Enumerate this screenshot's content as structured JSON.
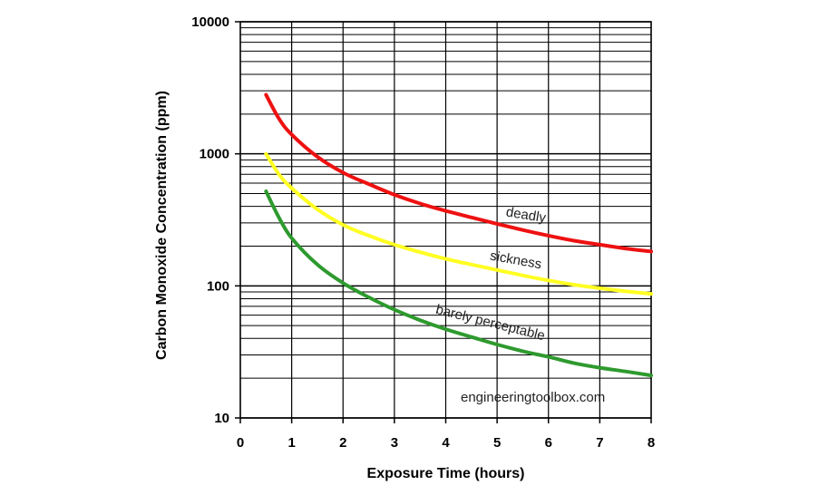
{
  "chart_data": {
    "type": "line",
    "title": "",
    "xlabel": "Exposure Time (hours)",
    "ylabel": "Carbon Monoxide Concentration (ppm)",
    "xlim": [
      0,
      8
    ],
    "ylim": [
      10,
      10000
    ],
    "yscale": "log",
    "grid": true,
    "x_ticks": [
      "0",
      "1",
      "2",
      "3",
      "4",
      "5",
      "6",
      "7",
      "8"
    ],
    "y_ticks": [
      "10",
      "100",
      "1000",
      "10000"
    ],
    "series": [
      {
        "name": "deadly",
        "color": "#ee1111",
        "x": [
          0.5,
          0.75,
          1,
          1.5,
          2,
          2.5,
          3,
          3.5,
          4,
          4.5,
          5,
          5.5,
          6,
          6.5,
          7,
          7.5,
          8
        ],
        "y": [
          2800,
          1850,
          1400,
          950,
          720,
          590,
          490,
          420,
          370,
          330,
          295,
          265,
          240,
          220,
          205,
          192,
          182
        ]
      },
      {
        "name": "sickness",
        "color": "#ffff22",
        "x": [
          0.5,
          0.75,
          1,
          1.5,
          2,
          2.5,
          3,
          3.5,
          4,
          4.5,
          5,
          5.5,
          6,
          6.5,
          7,
          7.5,
          8
        ],
        "y": [
          1000,
          700,
          550,
          380,
          290,
          240,
          205,
          180,
          160,
          145,
          132,
          120,
          110,
          102,
          96,
          91,
          87
        ]
      },
      {
        "name": "barely perceptable",
        "color": "#2e9a2e",
        "x": [
          0.5,
          0.75,
          1,
          1.5,
          2,
          2.5,
          3,
          3.5,
          4,
          4.5,
          5,
          5.5,
          6,
          6.5,
          7,
          7.5,
          8
        ],
        "y": [
          520,
          330,
          230,
          145,
          105,
          82,
          66,
          55,
          47,
          41,
          36,
          32,
          29,
          26,
          24,
          22.5,
          21
        ]
      }
    ],
    "annotations": [
      "engineeringtoolbox.com"
    ]
  }
}
